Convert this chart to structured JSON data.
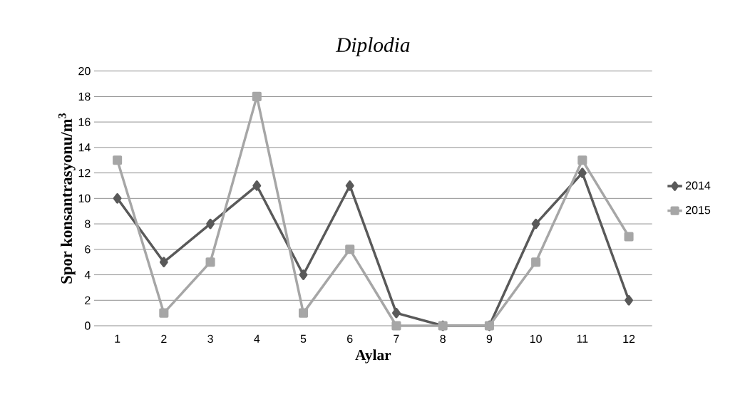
{
  "chart_data": {
    "type": "line",
    "title": "Diplodia",
    "xlabel": "Aylar",
    "ylabel": "Spor konsantrasyonu/m$^{3}$",
    "categories": [
      "1",
      "2",
      "3",
      "4",
      "5",
      "6",
      "7",
      "8",
      "9",
      "10",
      "11",
      "12"
    ],
    "series": [
      {
        "name": "2014",
        "color": "#595959",
        "marker": "diamond",
        "values": [
          10,
          5,
          8,
          11,
          4,
          11,
          1,
          0,
          0,
          8,
          12,
          2
        ]
      },
      {
        "name": "2015",
        "color": "#a6a6a6",
        "marker": "square",
        "values": [
          13,
          1,
          5,
          18,
          1,
          6,
          0,
          0,
          0,
          5,
          13,
          7
        ]
      }
    ],
    "ylim": [
      0,
      20
    ],
    "yticks": [
      0,
      2,
      4,
      6,
      8,
      10,
      12,
      14,
      16,
      18,
      20
    ],
    "grid": "y",
    "legend": "right"
  }
}
